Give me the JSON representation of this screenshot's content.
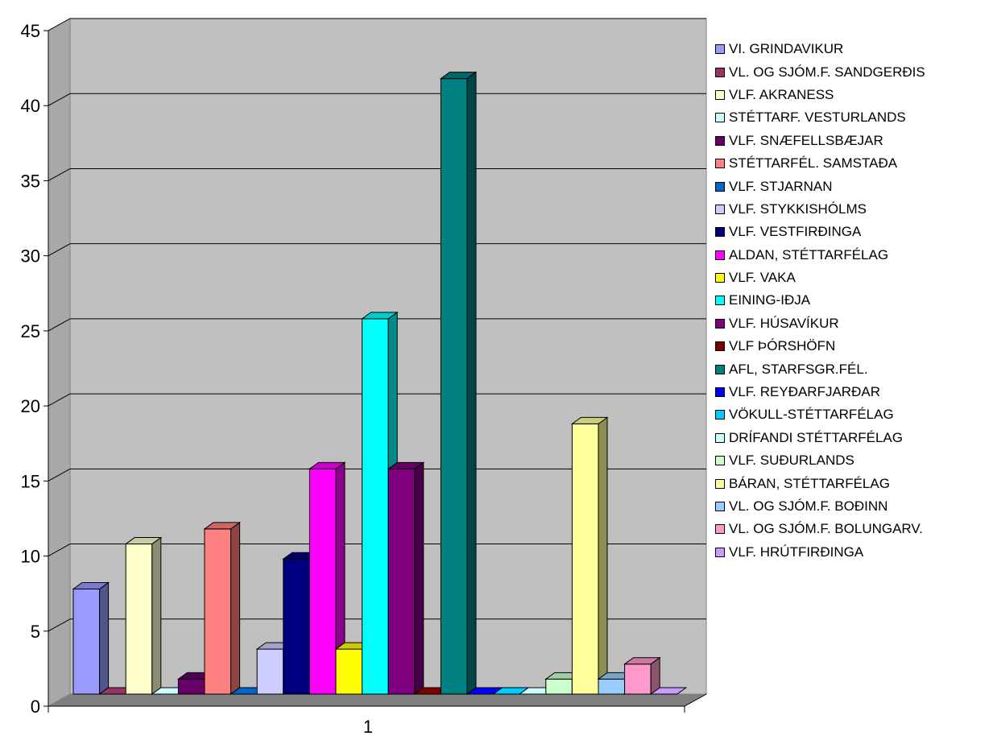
{
  "chart_data": {
    "type": "bar",
    "style": "3d-clustered-column",
    "categories": [
      "1"
    ],
    "ylim": [
      0,
      45
    ],
    "yticks": [
      0,
      5,
      10,
      15,
      20,
      25,
      30,
      35,
      40,
      45
    ],
    "grid": true,
    "legend_position": "right",
    "series": [
      {
        "name": "VI. GRINDAVIKUR",
        "values": [
          7
        ],
        "color": "#9999FF"
      },
      {
        "name": "VL. OG SJÓM.F. SANDGERÐIS",
        "values": [
          0
        ],
        "color": "#993366"
      },
      {
        "name": "VLF. AKRANESS",
        "values": [
          10
        ],
        "color": "#FFFFCC"
      },
      {
        "name": "STÉTTARF. VESTURLANDS",
        "values": [
          0
        ],
        "color": "#CCFFFF"
      },
      {
        "name": "VLF. SNÆFELLSBÆJAR",
        "values": [
          1
        ],
        "color": "#660066"
      },
      {
        "name": "STÉTTARFÉL. SAMSTAÐA",
        "values": [
          11
        ],
        "color": "#FF8080"
      },
      {
        "name": "VLF. STJARNAN",
        "values": [
          0
        ],
        "color": "#0066CC"
      },
      {
        "name": "VLF. STYKKISHÓLMS",
        "values": [
          3
        ],
        "color": "#CCCCFF"
      },
      {
        "name": "VLF. VESTFIRÐINGA",
        "values": [
          9
        ],
        "color": "#000080"
      },
      {
        "name": "ALDAN, STÉTTARFÉLAG",
        "values": [
          15
        ],
        "color": "#FF00FF"
      },
      {
        "name": "VLF. VAKA",
        "values": [
          3
        ],
        "color": "#FFFF00"
      },
      {
        "name": "EINING-IÐJA",
        "values": [
          25
        ],
        "color": "#00FFFF"
      },
      {
        "name": "VLF. HÚSAVÍKUR",
        "values": [
          15
        ],
        "color": "#800080"
      },
      {
        "name": "VLF ÞÓRSHÖFN",
        "values": [
          0
        ],
        "color": "#800000"
      },
      {
        "name": "AFL, STARFSGR.FÉL.",
        "values": [
          41
        ],
        "color": "#008080"
      },
      {
        "name": "VLF. REYÐARFJARÐAR",
        "values": [
          0
        ],
        "color": "#0000FF"
      },
      {
        "name": "VÖKULL-STÉTTARFÉLAG",
        "values": [
          0
        ],
        "color": "#00CCFF"
      },
      {
        "name": "DRÍFANDI STÉTTARFÉLAG",
        "values": [
          0
        ],
        "color": "#CCFFFF"
      },
      {
        "name": "VLF. SUÐURLANDS",
        "values": [
          1
        ],
        "color": "#CCFFCC"
      },
      {
        "name": "BÁRAN, STÉTTARFÉLAG",
        "values": [
          18
        ],
        "color": "#FFFF99"
      },
      {
        "name": "VL. OG SJÓM.F. BOÐINN",
        "values": [
          1
        ],
        "color": "#99CCFF"
      },
      {
        "name": "VL. OG SJÓM.F. BOLUNGARV.",
        "values": [
          2
        ],
        "color": "#FF99CC"
      },
      {
        "name": "VLF. HRÚTFIRÐINGA",
        "values": [
          0
        ],
        "color": "#CC99FF"
      }
    ]
  }
}
